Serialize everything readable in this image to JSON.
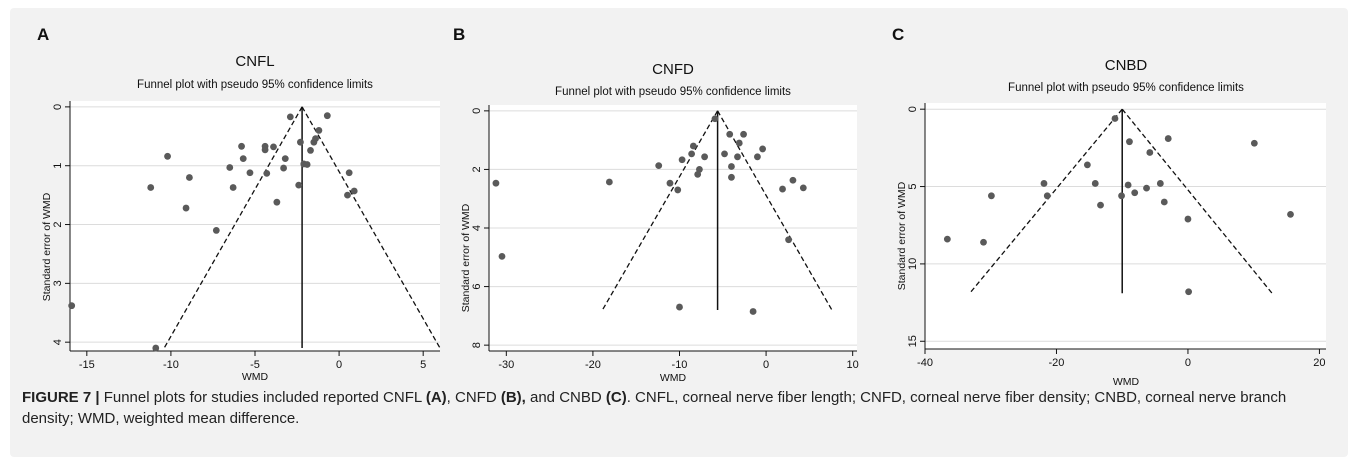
{
  "figure": {
    "caption_label": "FIGURE 7 |",
    "caption_parts": [
      {
        "text": " Funnel plots for studies included reported CNFL ",
        "bold": false
      },
      {
        "text": "(A)",
        "bold": true
      },
      {
        "text": ", CNFD ",
        "bold": false
      },
      {
        "text": "(B),",
        "bold": true
      },
      {
        "text": " and CNBD ",
        "bold": false
      },
      {
        "text": "(C)",
        "bold": true
      },
      {
        "text": ". CNFL, corneal nerve fiber length; CNFD, corneal nerve fiber density; CNBD, corneal nerve branch density; WMD, weighted mean difference.",
        "bold": false
      }
    ]
  },
  "chart_data": [
    {
      "panel": "A",
      "type": "scatter",
      "title": "CNFL",
      "subtitle": "Funnel plot with pseudo 95% confidence limits",
      "xlabel": "WMD",
      "ylabel": "Standard error of WMD",
      "y_reversed": true,
      "xlim": [
        -16,
        6
      ],
      "ylim": [
        4.15,
        -0.1
      ],
      "x_ticks": [
        -15,
        -10,
        -5,
        0,
        5
      ],
      "y_ticks": [
        0,
        1,
        2,
        3,
        4
      ],
      "grid": "horizontal",
      "pooled_wmd": -2.2,
      "ci_apex": [
        -2.2,
        0
      ],
      "ci_left_end": [
        -10.4,
        4.1
      ],
      "ci_right_end": [
        6.0,
        4.1
      ],
      "points": [
        [
          -15.9,
          3.38
        ],
        [
          -10.9,
          4.1
        ],
        [
          -11.2,
          1.37
        ],
        [
          -10.2,
          0.84
        ],
        [
          -8.9,
          1.2
        ],
        [
          -9.1,
          1.72
        ],
        [
          -7.3,
          2.1
        ],
        [
          -6.5,
          1.03
        ],
        [
          -6.3,
          1.37
        ],
        [
          -5.8,
          0.67
        ],
        [
          -5.7,
          0.88
        ],
        [
          -5.3,
          1.12
        ],
        [
          -4.4,
          0.73
        ],
        [
          -4.4,
          0.67
        ],
        [
          -4.3,
          1.13
        ],
        [
          -3.9,
          0.68
        ],
        [
          -3.7,
          1.62
        ],
        [
          -3.3,
          1.04
        ],
        [
          -3.2,
          0.88
        ],
        [
          -2.9,
          0.17
        ],
        [
          -2.4,
          1.33
        ],
        [
          -2.3,
          0.6
        ],
        [
          -2.1,
          0.97
        ],
        [
          -1.9,
          0.98
        ],
        [
          -1.7,
          0.74
        ],
        [
          -1.5,
          0.6
        ],
        [
          -1.4,
          0.54
        ],
        [
          -1.2,
          0.4
        ],
        [
          -0.7,
          0.15
        ],
        [
          0.5,
          1.5
        ],
        [
          0.6,
          1.12
        ],
        [
          0.9,
          1.43
        ]
      ]
    },
    {
      "panel": "B",
      "type": "scatter",
      "title": "CNFD",
      "subtitle": "Funnel plot with pseudo 95% confidence limits",
      "xlabel": "WMD",
      "ylabel": "Standard error of WMD",
      "y_reversed": true,
      "xlim": [
        -32,
        10.5
      ],
      "ylim": [
        8.2,
        -0.2
      ],
      "x_ticks": [
        -30,
        -20,
        -10,
        0,
        10
      ],
      "y_ticks": [
        0,
        2,
        4,
        6,
        8
      ],
      "grid": "horizontal",
      "pooled_wmd": -5.6,
      "ci_apex": [
        -5.6,
        0
      ],
      "ci_left_end": [
        -18.9,
        6.8
      ],
      "ci_right_end": [
        7.6,
        6.8
      ],
      "points": [
        [
          -31.2,
          2.47
        ],
        [
          -30.5,
          4.97
        ],
        [
          -18.1,
          2.43
        ],
        [
          -12.4,
          1.87
        ],
        [
          -11.1,
          2.47
        ],
        [
          -10.2,
          2.7
        ],
        [
          -9.7,
          1.67
        ],
        [
          -10.0,
          6.7
        ],
        [
          -8.6,
          1.47
        ],
        [
          -8.4,
          1.2
        ],
        [
          -7.9,
          2.17
        ],
        [
          -7.7,
          2.0
        ],
        [
          -7.1,
          1.57
        ],
        [
          -5.9,
          0.27
        ],
        [
          -4.8,
          1.47
        ],
        [
          -4.2,
          0.8
        ],
        [
          -4.0,
          2.27
        ],
        [
          -4.0,
          1.9
        ],
        [
          -3.3,
          1.57
        ],
        [
          -3.1,
          1.1
        ],
        [
          -2.6,
          0.8
        ],
        [
          -1.5,
          6.85
        ],
        [
          -1.0,
          1.57
        ],
        [
          -0.4,
          1.3
        ],
        [
          1.9,
          2.67
        ],
        [
          2.6,
          4.4
        ],
        [
          3.1,
          2.37
        ],
        [
          4.3,
          2.63
        ]
      ]
    },
    {
      "panel": "C",
      "type": "scatter",
      "title": "CNBD",
      "subtitle": "Funnel plot with pseudo 95% confidence limits",
      "xlabel": "WMD",
      "ylabel": "Standard error of WMD",
      "y_reversed": true,
      "xlim": [
        -40,
        21
      ],
      "ylim": [
        15.5,
        -0.4
      ],
      "x_ticks": [
        -40,
        -20,
        0,
        20
      ],
      "y_ticks": [
        0,
        5,
        10,
        15
      ],
      "grid": "horizontal",
      "pooled_wmd": -10,
      "ci_apex": [
        -10,
        0
      ],
      "ci_left_end": [
        -33.2,
        11.9
      ],
      "ci_right_end": [
        12.8,
        11.9
      ],
      "points": [
        [
          -36.6,
          8.4
        ],
        [
          -31.1,
          8.6
        ],
        [
          -29.9,
          5.6
        ],
        [
          -21.9,
          4.8
        ],
        [
          -21.4,
          5.6
        ],
        [
          -15.3,
          3.6
        ],
        [
          -14.1,
          4.8
        ],
        [
          -13.3,
          6.2
        ],
        [
          -11.1,
          0.6
        ],
        [
          -10.1,
          5.6
        ],
        [
          -9.1,
          4.9
        ],
        [
          -8.9,
          2.1
        ],
        [
          -8.1,
          5.4
        ],
        [
          -6.3,
          5.1
        ],
        [
          -5.8,
          2.8
        ],
        [
          -4.2,
          4.8
        ],
        [
          -3.6,
          6.0
        ],
        [
          -3.0,
          1.9
        ],
        [
          0.0,
          7.1
        ],
        [
          0.1,
          11.8
        ],
        [
          10.1,
          2.2
        ],
        [
          15.6,
          6.8
        ]
      ]
    }
  ]
}
